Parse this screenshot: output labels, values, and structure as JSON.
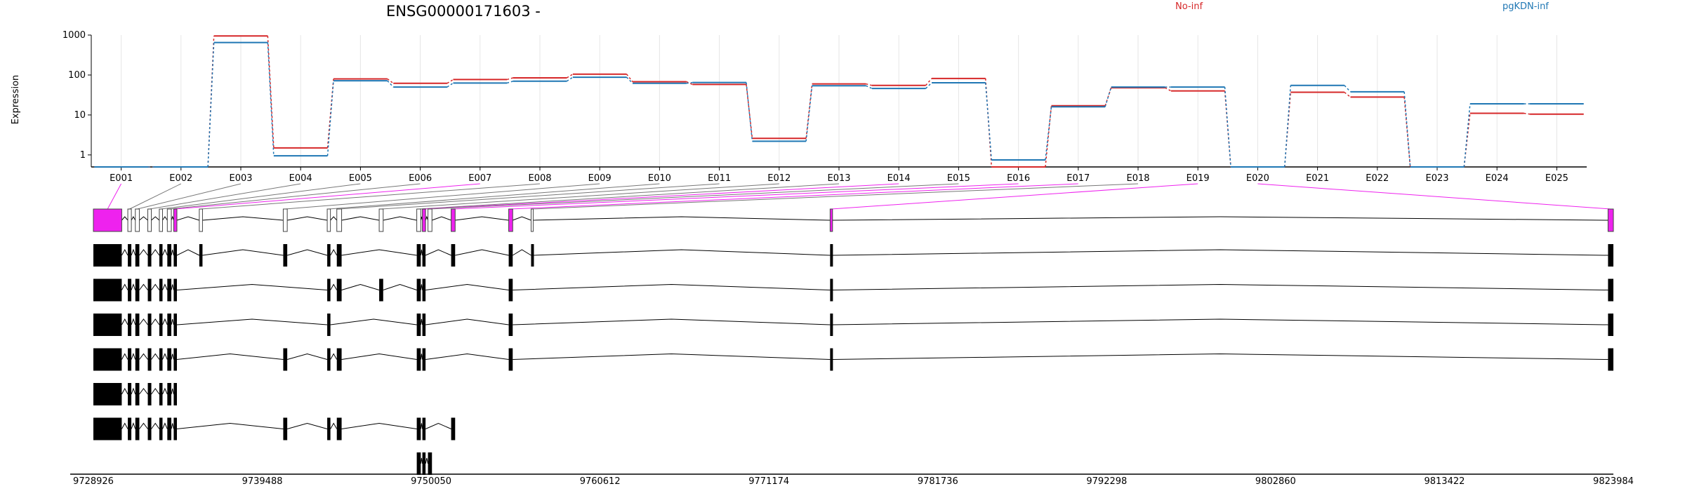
{
  "chart_data": {
    "type": "line",
    "title": "ENSG00000171603 -",
    "ylabel": "Expression",
    "yscale": "log",
    "ylim": [
      0.5,
      1000
    ],
    "yticks": [
      {
        "value": 1,
        "label": "1"
      },
      {
        "value": 10,
        "label": "10"
      },
      {
        "value": 100,
        "label": "100"
      },
      {
        "value": 1000,
        "label": "1000"
      }
    ],
    "grid": true,
    "legend_placement": "top",
    "categories": [
      "E001",
      "E002",
      "E003",
      "E004",
      "E005",
      "E006",
      "E007",
      "E008",
      "E009",
      "E010",
      "E011",
      "E012",
      "E013",
      "E014",
      "E015",
      "E016",
      "E017",
      "E018",
      "E019",
      "E020",
      "E021",
      "E022",
      "E023",
      "E024",
      "E025"
    ],
    "series": [
      {
        "name": "No-inf",
        "color": "#d62728",
        "values": [
          0.5,
          0.5,
          950,
          1.5,
          80,
          62,
          77,
          85,
          105,
          68,
          58,
          2.6,
          60,
          55,
          82,
          0.5,
          17,
          48,
          40,
          0.5,
          37,
          28,
          0.5,
          11,
          10.5
        ]
      },
      {
        "name": "pgKDN-inf",
        "color": "#1f77b4",
        "values": [
          0.5,
          0.5,
          650,
          0.95,
          72,
          50,
          63,
          70,
          88,
          62,
          65,
          2.2,
          54,
          46,
          64,
          0.75,
          16,
          50,
          50,
          0.5,
          55,
          38,
          0.5,
          19,
          19
        ]
      }
    ],
    "gene_model": {
      "coordinate_range": [
        9728926,
        9823984
      ],
      "coordinate_ticks": [
        9728926,
        9739488,
        9750050,
        9760612,
        9771174,
        9781736,
        9792298,
        9802860,
        9813422,
        9823984
      ],
      "highlight_color": "#ee22ee",
      "exon_segments": [
        {
          "start": 9728926,
          "end": 9730700,
          "highlight": true
        },
        {
          "start": 9731080,
          "end": 9731300,
          "highlight": false
        },
        {
          "start": 9731550,
          "end": 9731800,
          "highlight": false
        },
        {
          "start": 9732330,
          "end": 9732550,
          "highlight": false
        },
        {
          "start": 9733050,
          "end": 9733250,
          "highlight": false
        },
        {
          "start": 9733550,
          "end": 9733800,
          "highlight": false
        },
        {
          "start": 9733950,
          "end": 9734150,
          "highlight": true
        },
        {
          "start": 9735550,
          "end": 9735750,
          "highlight": false
        },
        {
          "start": 9740800,
          "end": 9741050,
          "highlight": false
        },
        {
          "start": 9743550,
          "end": 9743750,
          "highlight": false
        },
        {
          "start": 9744150,
          "end": 9744450,
          "highlight": false
        },
        {
          "start": 9746800,
          "end": 9747050,
          "highlight": false
        },
        {
          "start": 9749150,
          "end": 9749400,
          "highlight": false
        },
        {
          "start": 9749500,
          "end": 9749700,
          "highlight": true
        },
        {
          "start": 9749850,
          "end": 9750100,
          "highlight": false
        },
        {
          "start": 9751300,
          "end": 9751550,
          "highlight": true
        },
        {
          "start": 9754900,
          "end": 9755150,
          "highlight": true
        },
        {
          "start": 9756300,
          "end": 9756400,
          "highlight": false
        },
        {
          "start": 9775000,
          "end": 9775150,
          "highlight": true
        },
        {
          "start": 9823650,
          "end": 9823984,
          "highlight": true
        }
      ],
      "transcripts": [
        {
          "exons": [
            [
              9728926,
              9730700
            ],
            [
              9731080,
              9731300
            ],
            [
              9731550,
              9731800
            ],
            [
              9732330,
              9732550
            ],
            [
              9733050,
              9733250
            ],
            [
              9733550,
              9733800
            ],
            [
              9733950,
              9734150
            ],
            [
              9735550,
              9735750
            ],
            [
              9740800,
              9741050
            ],
            [
              9743550,
              9743750
            ],
            [
              9744150,
              9744450
            ],
            [
              9749150,
              9749400
            ],
            [
              9749500,
              9749700
            ],
            [
              9751300,
              9751550
            ],
            [
              9754900,
              9755150
            ],
            [
              9756300,
              9756400
            ],
            [
              9775000,
              9775150
            ],
            [
              9823650,
              9823984
            ]
          ]
        },
        {
          "exons": [
            [
              9728926,
              9730700
            ],
            [
              9731080,
              9731300
            ],
            [
              9731550,
              9731800
            ],
            [
              9732330,
              9732550
            ],
            [
              9733050,
              9733250
            ],
            [
              9733550,
              9733800
            ],
            [
              9733950,
              9734150
            ],
            [
              9743550,
              9743750
            ],
            [
              9744150,
              9744450
            ],
            [
              9746800,
              9747050
            ],
            [
              9749150,
              9749400
            ],
            [
              9749500,
              9749700
            ],
            [
              9754900,
              9755150
            ],
            [
              9775000,
              9775150
            ],
            [
              9823650,
              9823984
            ]
          ]
        },
        {
          "exons": [
            [
              9728926,
              9730700
            ],
            [
              9731080,
              9731300
            ],
            [
              9731550,
              9731800
            ],
            [
              9732330,
              9732550
            ],
            [
              9733050,
              9733250
            ],
            [
              9733550,
              9733800
            ],
            [
              9733950,
              9734150
            ],
            [
              9743550,
              9743750
            ],
            [
              9749150,
              9749400
            ],
            [
              9749500,
              9749700
            ],
            [
              9754900,
              9755150
            ],
            [
              9775000,
              9775150
            ],
            [
              9823650,
              9823984
            ]
          ]
        },
        {
          "exons": [
            [
              9728926,
              9730700
            ],
            [
              9731080,
              9731300
            ],
            [
              9731550,
              9731800
            ],
            [
              9732330,
              9732550
            ],
            [
              9733050,
              9733250
            ],
            [
              9733550,
              9733800
            ],
            [
              9733950,
              9734150
            ],
            [
              9740800,
              9741050
            ],
            [
              9743550,
              9743750
            ],
            [
              9744150,
              9744450
            ],
            [
              9749150,
              9749400
            ],
            [
              9749500,
              9749700
            ],
            [
              9754900,
              9755150
            ],
            [
              9775000,
              9775150
            ],
            [
              9823650,
              9823984
            ]
          ]
        },
        {
          "exons": [
            [
              9728926,
              9730700
            ],
            [
              9731080,
              9731300
            ],
            [
              9731550,
              9731800
            ],
            [
              9732330,
              9732550
            ],
            [
              9733050,
              9733250
            ],
            [
              9733550,
              9733800
            ],
            [
              9733950,
              9734150
            ]
          ]
        },
        {
          "exons": [
            [
              9728926,
              9730700
            ],
            [
              9731080,
              9731300
            ],
            [
              9731550,
              9731800
            ],
            [
              9732330,
              9732550
            ],
            [
              9733050,
              9733250
            ],
            [
              9733550,
              9733800
            ],
            [
              9733950,
              9734150
            ],
            [
              9740800,
              9741050
            ],
            [
              9743550,
              9743750
            ],
            [
              9744150,
              9744450
            ],
            [
              9749150,
              9749400
            ],
            [
              9749500,
              9749700
            ],
            [
              9751300,
              9751550
            ]
          ]
        },
        {
          "exons": [
            [
              9749150,
              9749400
            ],
            [
              9749500,
              9749700
            ],
            [
              9749850,
              9750100
            ]
          ]
        }
      ]
    }
  }
}
